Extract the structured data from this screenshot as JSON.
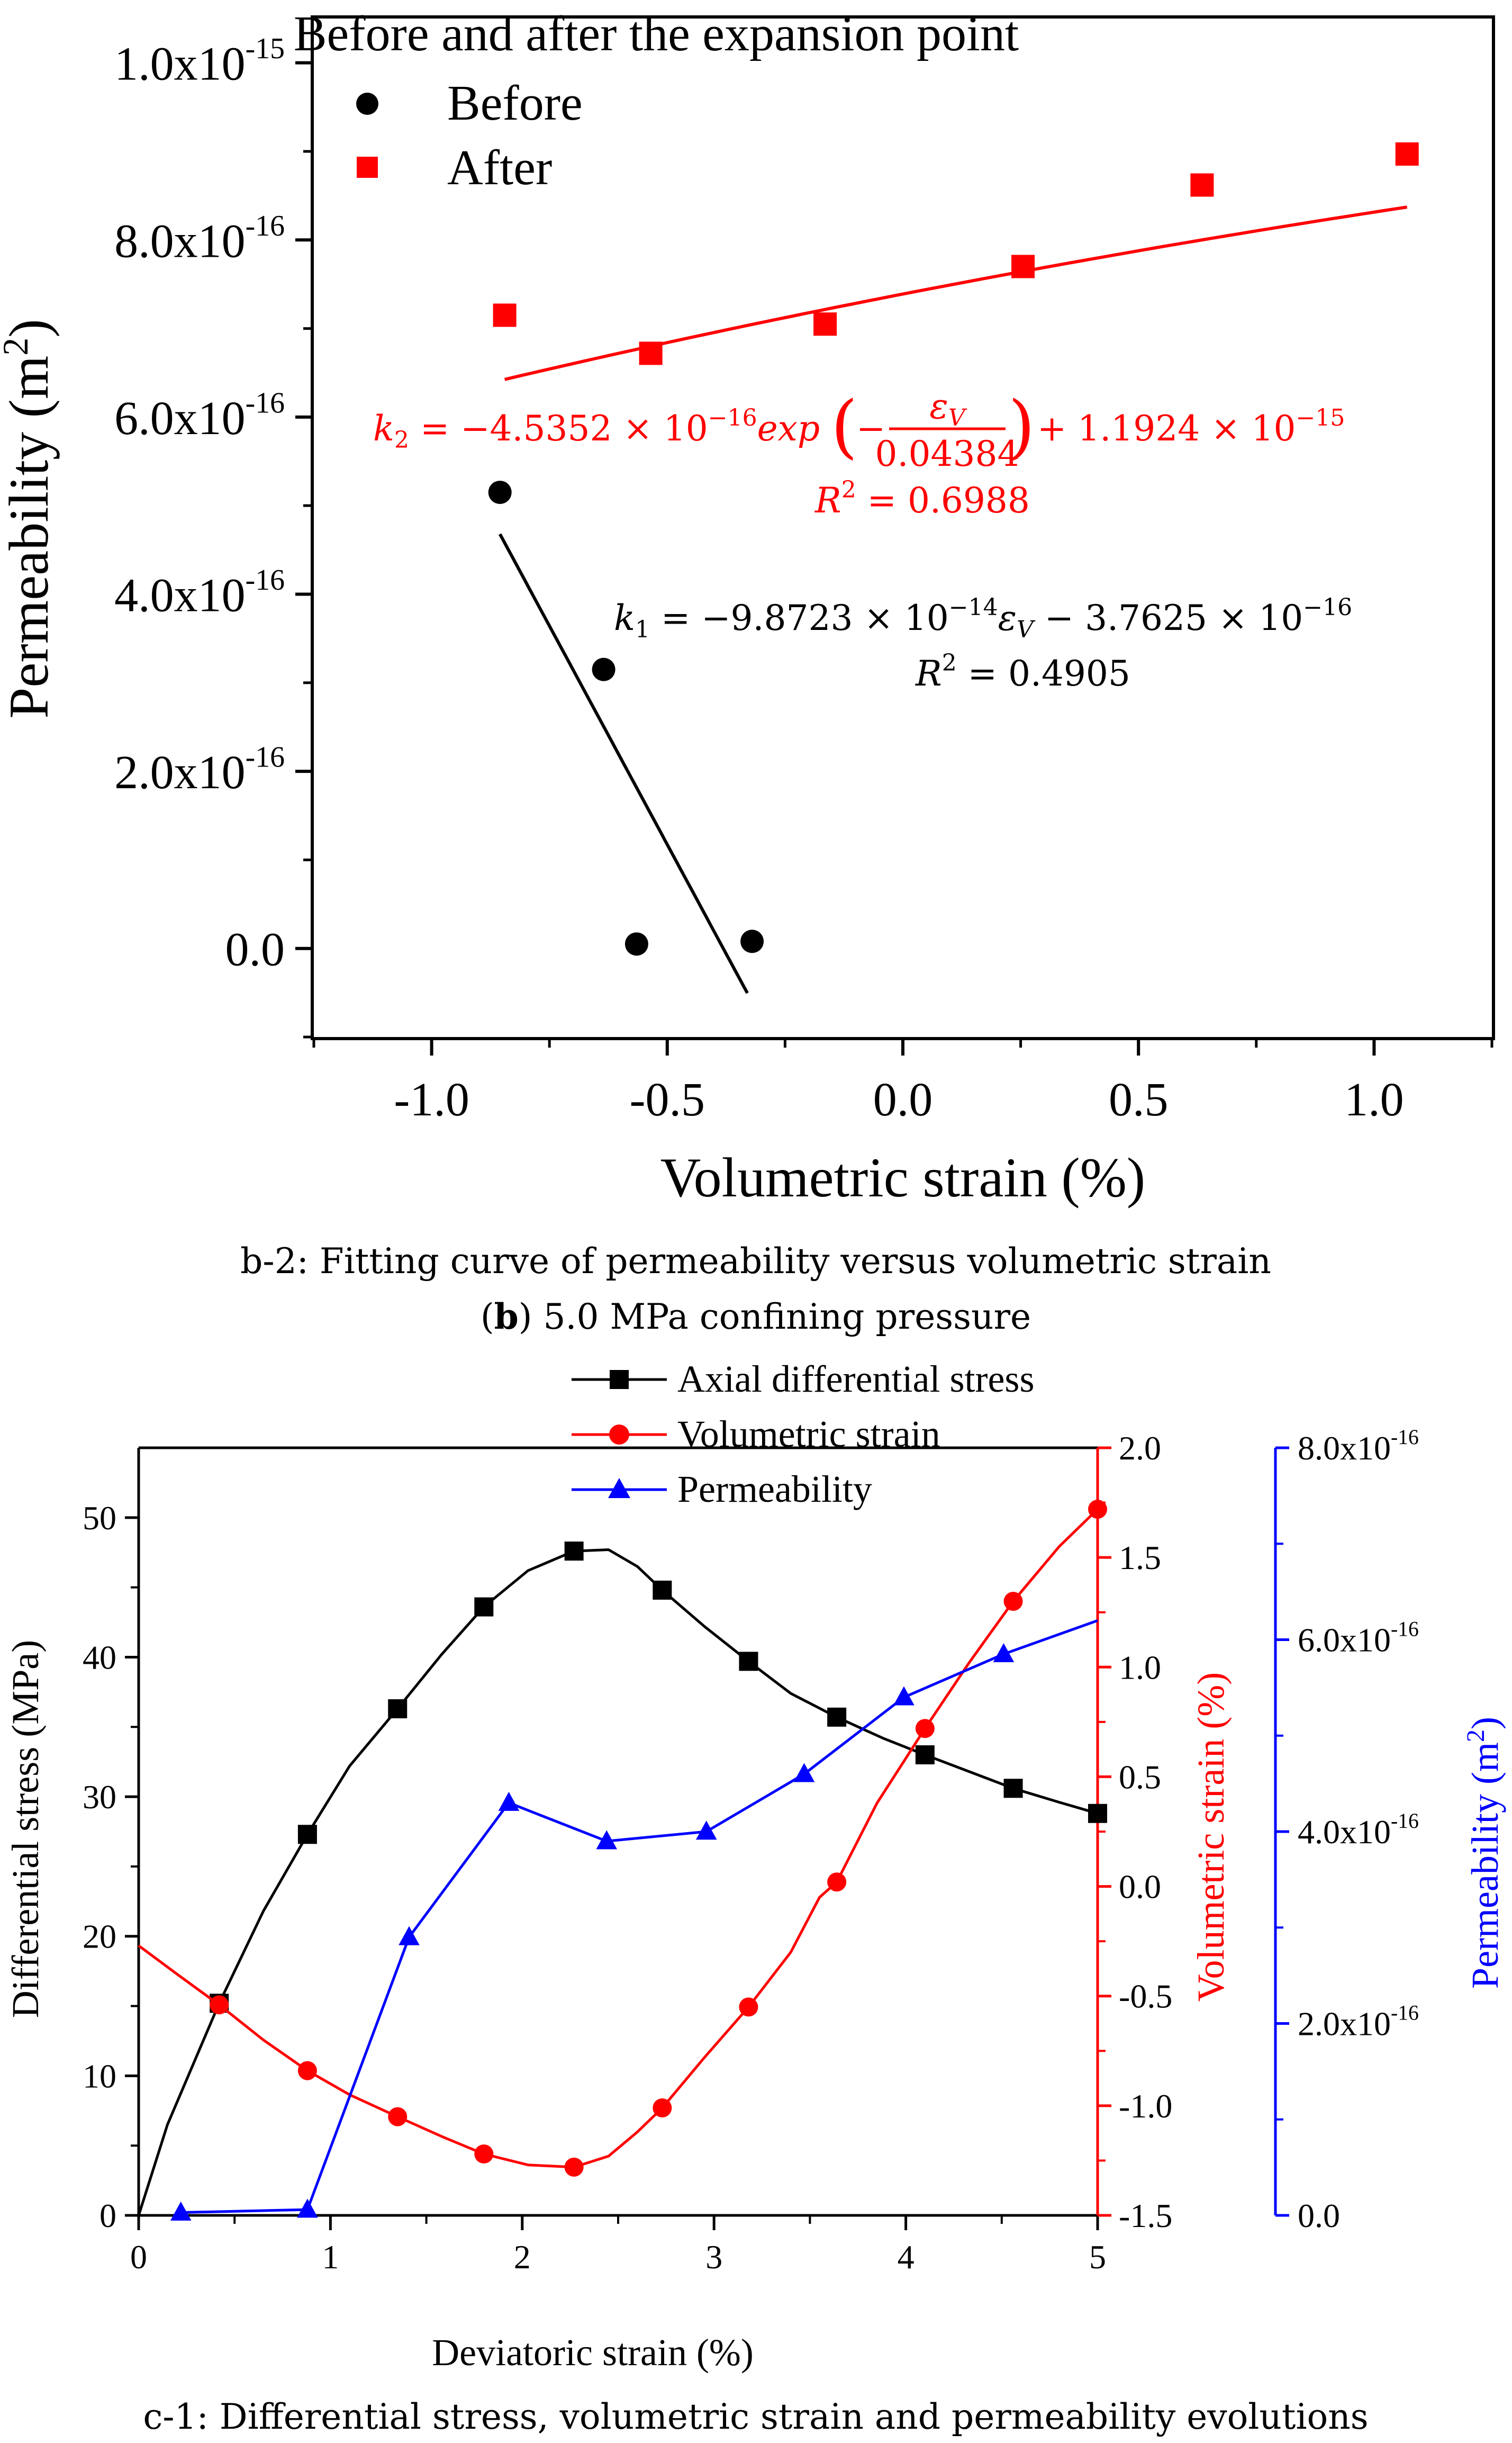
{
  "chart_data": [
    {
      "type": "scatter",
      "title": "Before and after the expansion point",
      "xlabel": "Volumetric strain (%)",
      "ylabel": "Permeability (m",
      "ylabel_sup": "2",
      "ylabel_close": ")",
      "xlim": [
        -1.25,
        1.25
      ],
      "ylim": [
        -1e-16,
        1.05e-15
      ],
      "x_ticks": [
        -1.0,
        -0.5,
        0.0,
        0.5,
        1.0
      ],
      "x_tick_labels": [
        "-1.0",
        "-0.5",
        "0.0",
        "0.5",
        "1.0"
      ],
      "y_ticks": [
        0,
        2e-16,
        4e-16,
        6e-16,
        8e-16,
        1e-15
      ],
      "y_tick_labels": [
        {
          "base": "0.0",
          "exp": ""
        },
        {
          "base": "2.0x10",
          "exp": "-16"
        },
        {
          "base": "4.0x10",
          "exp": "-16"
        },
        {
          "base": "6.0x10",
          "exp": "-16"
        },
        {
          "base": "8.0x10",
          "exp": "-16"
        },
        {
          "base": "1.0x10",
          "exp": "-15"
        }
      ],
      "series": [
        {
          "name": "Before",
          "marker": "circle",
          "color": "#000000",
          "x": [
            -0.855,
            -0.635,
            -0.565,
            -0.32
          ],
          "y": [
            5.15e-16,
            3.15e-16,
            5e-18,
            8e-18
          ],
          "fit": {
            "type": "linear",
            "x_range": [
              -0.855,
              -0.33
            ],
            "slope": -9.8723e-14,
            "intercept": -3.7625e-16
          },
          "equation": {
            "lhs": "k",
            "lhs_sub": "1",
            "rhs_a": " = −9.8723 × 10",
            "rhs_a_sup": "−14",
            "var": "ε",
            "var_sub": "V",
            "rhs_b": " − 3.7625 × 10",
            "rhs_b_sup": "−16",
            "r2_label": "R",
            "r2_sup": "2",
            "r2_value": " = 0.4905"
          }
        },
        {
          "name": "After",
          "marker": "square",
          "color": "#ff0000",
          "x": [
            -0.845,
            -0.535,
            -0.165,
            0.255,
            0.635,
            1.07
          ],
          "y": [
            7.15e-16,
            6.72e-16,
            7.05e-16,
            7.7e-16,
            8.62e-16,
            8.97e-16
          ],
          "fit": {
            "type": "exponential",
            "x_range": [
              -0.845,
              1.07
            ],
            "A": -4.5352e-16,
            "t": 0.04384,
            "y0": 1.1924e-15
          },
          "equation": {
            "lhs": "k",
            "lhs_sub": "2",
            "rhs_a": " = −4.5352 × 10",
            "rhs_a_sup": "−16",
            "exp_word": "exp",
            "frac_num": "ε",
            "frac_num_sub": "V",
            "frac_den": "0.04384",
            "rhs_b": " + 1.1924 × 10",
            "rhs_b_sup": "−15",
            "r2_label": "R",
            "r2_sup": "2",
            "r2_value": " = 0.6988"
          }
        }
      ]
    },
    {
      "type": "line",
      "xlabel": "Deviatoric strain (%)",
      "xlim": [
        0,
        5
      ],
      "x_ticks": [
        0,
        1,
        2,
        3,
        4,
        5
      ],
      "x_tick_labels": [
        "0",
        "1",
        "2",
        "3",
        "4",
        "5"
      ],
      "legend": [
        "Axial differential stress",
        "Volumetric strain",
        "Permeability"
      ],
      "axes": {
        "left": {
          "label": "Differential stress (MPa)",
          "color": "#000000",
          "ylim": [
            0,
            55
          ],
          "ticks": [
            0,
            10,
            20,
            30,
            40,
            50
          ],
          "tick_labels": [
            "0",
            "10",
            "20",
            "30",
            "40",
            "50"
          ]
        },
        "right1": {
          "label": "Volumetric strain (%)",
          "color": "#ff0000",
          "ylim": [
            -1.5,
            2.0
          ],
          "ticks": [
            -1.5,
            -1.0,
            -0.5,
            0.0,
            0.5,
            1.0,
            1.5,
            2.0
          ],
          "tick_labels": [
            "-1.5",
            "-1.0",
            "-0.5",
            "0.0",
            "0.5",
            "1.0",
            "1.5",
            "2.0"
          ]
        },
        "right2": {
          "label": "Permeability (m",
          "label_sup": "2",
          "label_close": ")",
          "color": "#0000ff",
          "ylim": [
            0,
            8e-16
          ],
          "ticks": [
            0,
            2e-16,
            4e-16,
            6e-16,
            8e-16
          ],
          "tick_labels": [
            {
              "base": "0.0",
              "exp": ""
            },
            {
              "base": "2.0x10",
              "exp": "-16"
            },
            {
              "base": "4.0x10",
              "exp": "-16"
            },
            {
              "base": "6.0x10",
              "exp": "-16"
            },
            {
              "base": "8.0x10",
              "exp": "-16"
            }
          ]
        }
      },
      "series": [
        {
          "name": "Axial differential stress",
          "axis": "left",
          "color": "#000000",
          "marker": "square",
          "curve_x": [
            0,
            0.15,
            0.42,
            0.65,
            0.88,
            1.1,
            1.35,
            1.58,
            1.8,
            2.03,
            2.27,
            2.45,
            2.6,
            2.73,
            2.95,
            3.18,
            3.4,
            3.64,
            3.88,
            4.1,
            4.33,
            4.56,
            4.8,
            5.0
          ],
          "curve_y": [
            0,
            6.5,
            15.2,
            21.8,
            27.3,
            32.2,
            36.3,
            40.2,
            43.6,
            46.2,
            47.6,
            47.7,
            46.5,
            44.8,
            42.2,
            39.7,
            37.4,
            35.7,
            34.2,
            33.0,
            31.8,
            30.6,
            29.6,
            28.8
          ],
          "marker_x": [
            0.42,
            0.88,
            1.35,
            1.8,
            2.27,
            2.73,
            3.18,
            3.64,
            4.1,
            4.56,
            5.0
          ],
          "marker_y": [
            15.2,
            27.3,
            36.3,
            43.6,
            47.6,
            44.8,
            39.7,
            35.7,
            33.0,
            30.6,
            28.8
          ]
        },
        {
          "name": "Volumetric strain",
          "axis": "right1",
          "color": "#ff0000",
          "marker": "circle",
          "curve_x": [
            0,
            0.2,
            0.42,
            0.65,
            0.88,
            1.1,
            1.35,
            1.58,
            1.8,
            2.03,
            2.27,
            2.45,
            2.6,
            2.73,
            2.95,
            3.18,
            3.4,
            3.55,
            3.64,
            3.85,
            4.1,
            4.33,
            4.56,
            4.8,
            5.0
          ],
          "curve_y": [
            -0.27,
            -0.4,
            -0.54,
            -0.7,
            -0.84,
            -0.95,
            -1.05,
            -1.14,
            -1.22,
            -1.27,
            -1.28,
            -1.23,
            -1.12,
            -1.01,
            -0.78,
            -0.55,
            -0.3,
            -0.05,
            0.02,
            0.38,
            0.72,
            1.02,
            1.3,
            1.55,
            1.72
          ],
          "marker_x": [
            0.42,
            0.88,
            1.35,
            1.8,
            2.27,
            2.73,
            3.18,
            3.64,
            4.1,
            4.56,
            5.0
          ],
          "marker_y": [
            -0.54,
            -0.84,
            -1.05,
            -1.22,
            -1.28,
            -1.01,
            -0.55,
            0.02,
            0.72,
            1.3,
            1.72
          ]
        },
        {
          "name": "Permeability",
          "axis": "right2",
          "color": "#0000ff",
          "marker": "triangle",
          "curve_x": [
            0.22,
            0.88,
            1.41,
            1.93,
            2.44,
            2.96,
            3.47,
            3.99,
            4.51,
            5.0
          ],
          "curve_y": [
            3e-18,
            6e-18,
            2.9e-16,
            4.3e-16,
            3.9e-16,
            4e-16,
            4.6e-16,
            5.4e-16,
            5.85e-16,
            6.2e-16
          ],
          "marker_x": [
            0.22,
            0.88,
            1.41,
            1.93,
            2.44,
            2.96,
            3.47,
            3.99,
            4.51
          ],
          "marker_y": [
            3e-18,
            6e-18,
            2.9e-16,
            4.3e-16,
            3.9e-16,
            4e-16,
            4.6e-16,
            5.4e-16,
            5.85e-16
          ]
        }
      ]
    }
  ],
  "captions": {
    "b2": "b-2: Fitting curve of permeability versus volumetric strain",
    "b_label_open": "(",
    "b_label_letter": "b",
    "b_label_rest": ") 5.0 MPa confining pressure",
    "c1": "c-1: Differential stress, volumetric strain and permeability evolutions"
  }
}
